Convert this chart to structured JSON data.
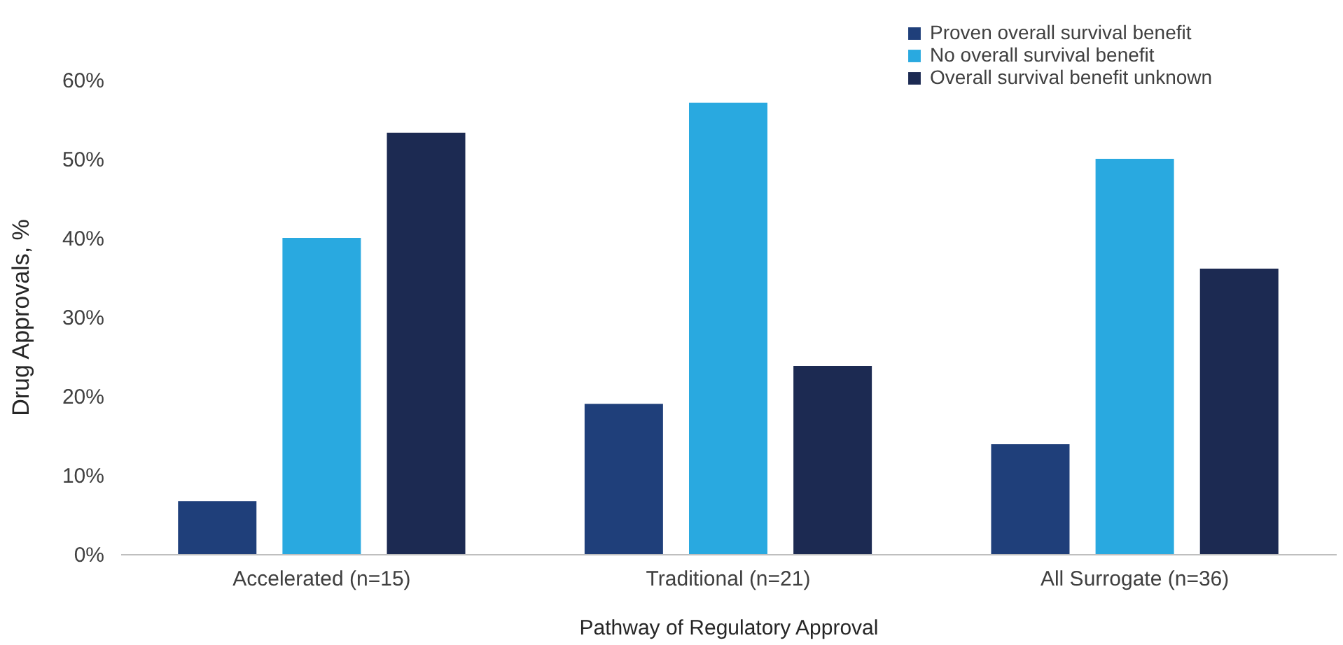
{
  "chart_data": {
    "type": "bar",
    "xlabel": "Pathway of Regulatory Approval",
    "ylabel": "Drug Approvals, %",
    "categories": [
      "Accelerated (n=15)",
      "Traditional (n=21)",
      "All Surrogate (n=36)"
    ],
    "series": [
      {
        "name": "Proven overall survival benefit",
        "color": "#1f3f7a",
        "values": [
          6.7,
          19.0,
          13.9
        ]
      },
      {
        "name": "No overall survival benefit",
        "color": "#29a9e0",
        "values": [
          40.0,
          57.1,
          50.0
        ]
      },
      {
        "name": "Overall survival benefit unknown",
        "color": "#1c2a52",
        "values": [
          53.3,
          23.8,
          36.1
        ]
      }
    ],
    "ylim": [
      0,
      60
    ],
    "yticks": [
      {
        "value": 0,
        "label": "0%"
      },
      {
        "value": 10,
        "label": "10%"
      },
      {
        "value": 20,
        "label": "20%"
      },
      {
        "value": 30,
        "label": "30%"
      },
      {
        "value": 40,
        "label": "40%"
      },
      {
        "value": 50,
        "label": "50%"
      },
      {
        "value": 60,
        "label": "60%"
      }
    ],
    "grid": false,
    "legend": "top right"
  }
}
